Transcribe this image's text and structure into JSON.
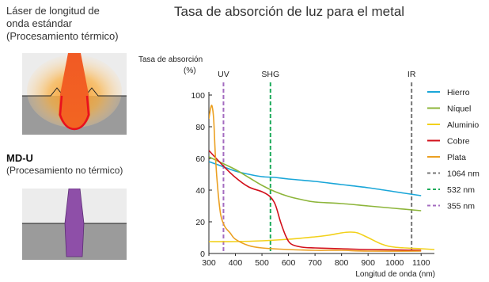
{
  "left": {
    "thermal_title_lines": [
      "Láser de longitud de",
      "onda estándar",
      "(Procesamiento térmico)"
    ],
    "mdu_title": "MD-U",
    "mdu_subtitle": "(Procesamiento no térmico)"
  },
  "chart_data": {
    "type": "line",
    "title": "Tasa de absorción de luz para el metal",
    "ylabel": "Tasa de absorción",
    "yunit": "(%)",
    "xlabel": "Longitud de onda (nm)",
    "xlim": [
      300,
      1150
    ],
    "ylim": [
      0,
      100
    ],
    "xticks": [
      300,
      400,
      500,
      600,
      700,
      800,
      900,
      1000,
      1100
    ],
    "yticks": [
      0,
      20,
      40,
      60,
      80,
      100
    ],
    "grid": false,
    "legend_position": "right",
    "series": [
      {
        "name": "Hierro",
        "color": "#1aa6d8",
        "x": [
          300,
          350,
          400,
          450,
          500,
          550,
          600,
          700,
          800,
          900,
          1000,
          1100
        ],
        "y": [
          58,
          55,
          52,
          50,
          48.5,
          48,
          47,
          45.5,
          43.5,
          41.5,
          39,
          36.5
        ]
      },
      {
        "name": "Níquel",
        "color": "#8db53a",
        "x": [
          300,
          350,
          400,
          450,
          500,
          550,
          600,
          650,
          700,
          800,
          900,
          1000,
          1100
        ],
        "y": [
          61,
          57,
          53,
          48,
          43,
          39,
          36,
          34,
          32.5,
          31.5,
          30,
          28.5,
          27
        ]
      },
      {
        "name": "Aluminio",
        "color": "#f2d11b",
        "x": [
          300,
          400,
          500,
          600,
          700,
          750,
          800,
          830,
          860,
          900,
          950,
          1000,
          1100,
          1150
        ],
        "y": [
          7.5,
          7.5,
          8,
          9,
          10.5,
          11.5,
          13,
          13.5,
          13,
          10,
          6,
          4,
          3,
          2.5
        ]
      },
      {
        "name": "Cobre",
        "color": "#d2101b",
        "x": [
          300,
          350,
          400,
          450,
          500,
          530,
          550,
          570,
          590,
          610,
          650,
          700,
          800,
          900,
          1100
        ],
        "y": [
          65,
          56,
          48,
          42,
          39,
          36,
          31,
          20,
          11,
          6,
          4,
          3.5,
          3,
          2.5,
          2
        ]
      },
      {
        "name": "Plata",
        "color": "#eba022",
        "x": [
          300,
          307,
          312,
          318,
          325,
          335,
          345,
          360,
          380,
          400,
          450,
          500,
          600,
          700,
          800,
          900,
          1100
        ],
        "y": [
          85,
          92,
          93,
          85,
          60,
          38,
          24,
          17,
          13,
          9,
          5,
          3.5,
          2.5,
          2,
          2,
          1.5,
          1.5
        ]
      }
    ],
    "reference_lines": [
      {
        "label": "UV",
        "x": 355,
        "legend": "355 nm",
        "color": "#a46cc0"
      },
      {
        "label": "SHG",
        "x": 532,
        "legend": "532 nm",
        "color": "#1caa5a"
      },
      {
        "label": "IR",
        "x": 1064,
        "legend": "1064 nm",
        "color": "#777777"
      }
    ]
  }
}
